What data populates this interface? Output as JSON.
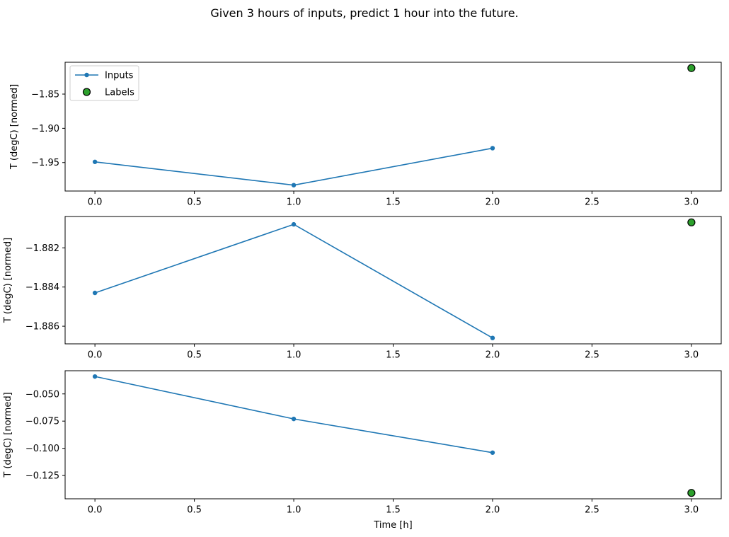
{
  "title": "Given 3 hours of inputs, predict 1 hour into the future.",
  "xlabel": "Time [h]",
  "ylabel": "T (degC) [normed]",
  "colors": {
    "inputs_line": "#1f77b4",
    "labels_fill": "#2ca02c",
    "labels_edge": "#000000",
    "axes": "#000000",
    "legend_border": "#cccccc",
    "background": "#ffffff"
  },
  "legend": {
    "position": "upper left",
    "entries": [
      "Inputs",
      "Labels"
    ]
  },
  "chart_data": [
    {
      "type": "line",
      "ylabel": "T (degC) [normed]",
      "xlabel": "",
      "xlim": [
        -0.15,
        3.15
      ],
      "ylim": [
        -1.9916,
        -1.8035
      ],
      "grid": false,
      "xticks": {
        "values": [
          0,
          0.5,
          1,
          1.5,
          2,
          2.5,
          3
        ],
        "labels": [
          "0.0",
          "0.5",
          "1.0",
          "1.5",
          "2.0",
          "2.5",
          "3.0"
        ]
      },
      "yticks": {
        "values": [
          -1.85,
          -1.9,
          -1.95
        ],
        "labels": [
          "−1.85",
          "−1.90",
          "−1.95"
        ]
      },
      "series": [
        {
          "name": "Inputs",
          "type": "line+marker",
          "x": [
            0,
            1,
            2
          ],
          "y": [
            -1.949,
            -1.983,
            -1.929
          ]
        },
        {
          "name": "Labels",
          "type": "scatter",
          "x": [
            3
          ],
          "y": [
            -1.812
          ]
        }
      ],
      "show_legend": true
    },
    {
      "type": "line",
      "ylabel": "T (degC) [normed]",
      "xlabel": "",
      "xlim": [
        -0.15,
        3.15
      ],
      "ylim": [
        -1.8869,
        -1.8804
      ],
      "grid": false,
      "xticks": {
        "values": [
          0,
          0.5,
          1,
          1.5,
          2,
          2.5,
          3
        ],
        "labels": [
          "0.0",
          "0.5",
          "1.0",
          "1.5",
          "2.0",
          "2.5",
          "3.0"
        ]
      },
      "yticks": {
        "values": [
          -1.882,
          -1.884,
          -1.886
        ],
        "labels": [
          "−1.882",
          "−1.884",
          "−1.886"
        ]
      },
      "series": [
        {
          "name": "Inputs",
          "type": "line+marker",
          "x": [
            0,
            1,
            2
          ],
          "y": [
            -1.8843,
            -1.8808,
            -1.8866
          ]
        },
        {
          "name": "Labels",
          "type": "scatter",
          "x": [
            3
          ],
          "y": [
            -1.8807
          ]
        }
      ],
      "show_legend": false
    },
    {
      "type": "line",
      "ylabel": "T (degC) [normed]",
      "xlabel": "Time [h]",
      "xlim": [
        -0.15,
        3.15
      ],
      "ylim": [
        -0.1464,
        -0.0287
      ],
      "grid": false,
      "xticks": {
        "values": [
          0,
          0.5,
          1,
          1.5,
          2,
          2.5,
          3
        ],
        "labels": [
          "0.0",
          "0.5",
          "1.0",
          "1.5",
          "2.0",
          "2.5",
          "3.0"
        ]
      },
      "yticks": {
        "values": [
          -0.05,
          -0.075,
          -0.1,
          -0.125
        ],
        "labels": [
          "−0.050",
          "−0.075",
          "−0.100",
          "−0.125"
        ]
      },
      "series": [
        {
          "name": "Inputs",
          "type": "line+marker",
          "x": [
            0,
            1,
            2
          ],
          "y": [
            -0.034,
            -0.073,
            -0.104
          ]
        },
        {
          "name": "Labels",
          "type": "scatter",
          "x": [
            3
          ],
          "y": [
            -0.141
          ]
        }
      ],
      "show_legend": false
    }
  ]
}
